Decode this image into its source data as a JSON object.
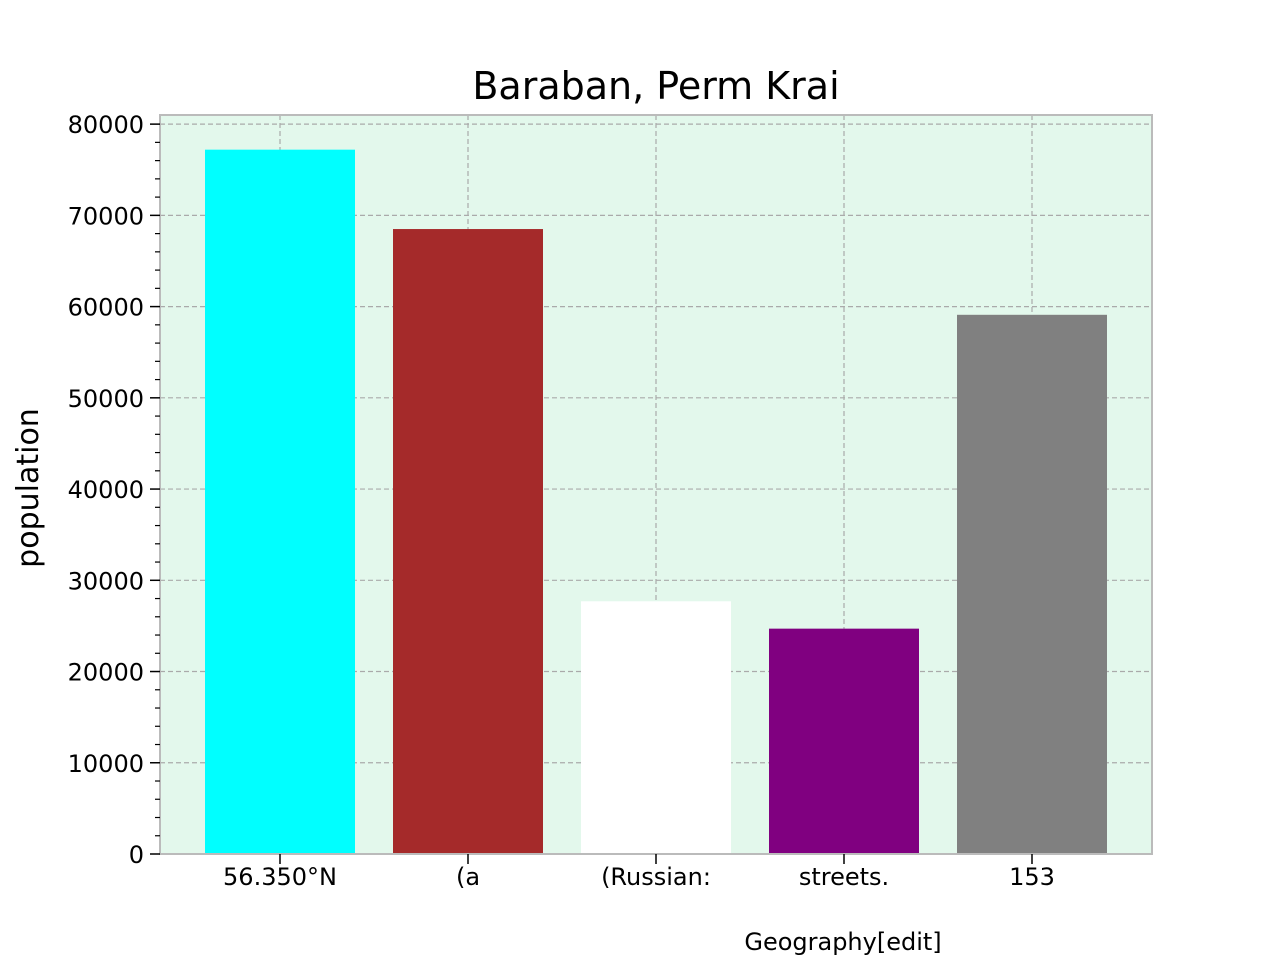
{
  "chart_data": {
    "type": "bar",
    "title": "Baraban, Perm Krai",
    "ylabel": "population",
    "xlabel": "",
    "categories": [
      "56.350°N",
      "(a",
      "(Russian:",
      "streets.",
      "153"
    ],
    "values": [
      77200,
      68500,
      27700,
      24700,
      59100
    ],
    "colors": [
      "#00ffff",
      "#a52a2a",
      "#ffffff",
      "#800080",
      "#808080"
    ],
    "ylim": [
      0,
      81000
    ],
    "yticks": [
      0,
      10000,
      20000,
      30000,
      40000,
      50000,
      60000,
      70000,
      80000
    ],
    "ytick_labels": [
      "0",
      "10000",
      "20000",
      "30000",
      "40000",
      "50000",
      "60000",
      "70000",
      "80000"
    ],
    "grid": true,
    "plot_background": "#e3f8ec",
    "annotation": "Geography[edit]"
  }
}
